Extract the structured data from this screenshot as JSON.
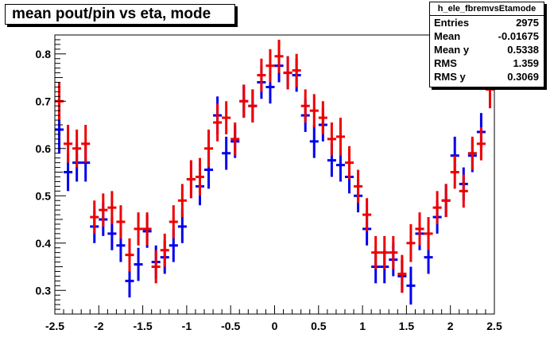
{
  "title": "mean pout/pin vs eta, mode",
  "stats": {
    "name": "h_ele_fbremvsEtamode",
    "rows": [
      {
        "label": "Entries",
        "value": "2975"
      },
      {
        "label": "Mean",
        "value": "-0.01675"
      },
      {
        "label": "Mean y",
        "value": "0.5338"
      },
      {
        "label": "RMS",
        "value": "1.359"
      },
      {
        "label": "RMS y",
        "value": "0.3069"
      }
    ]
  },
  "colors": {
    "blue_series": "#0000ee",
    "red_series": "#ee0000"
  },
  "chart_data": {
    "type": "scatter",
    "title": "mean pout/pin vs eta, mode",
    "xlabel": "",
    "ylabel": "",
    "xlim": [
      -2.5,
      2.5
    ],
    "ylim": [
      0.25,
      0.84
    ],
    "xticks": [
      "-2.5",
      "-2",
      "-1.5",
      "-1",
      "-0.5",
      "0",
      "0.5",
      "1",
      "1.5",
      "2",
      "2.5"
    ],
    "yticks": [
      "0.3",
      "0.4",
      "0.5",
      "0.6",
      "0.7",
      "0.8"
    ],
    "grid": false,
    "legend": "none",
    "series": [
      {
        "color": "#0000ee",
        "points": [
          {
            "x": -2.45,
            "y": 0.64,
            "err": 0.05
          },
          {
            "x": -2.35,
            "y": 0.55,
            "err": 0.04
          },
          {
            "x": -2.25,
            "y": 0.57,
            "err": 0.04
          },
          {
            "x": -2.15,
            "y": 0.57,
            "err": 0.04
          },
          {
            "x": -2.05,
            "y": 0.435,
            "err": 0.035
          },
          {
            "x": -1.95,
            "y": 0.45,
            "err": 0.035
          },
          {
            "x": -1.85,
            "y": 0.42,
            "err": 0.035
          },
          {
            "x": -1.75,
            "y": 0.395,
            "err": 0.035
          },
          {
            "x": -1.65,
            "y": 0.32,
            "err": 0.035
          },
          {
            "x": -1.55,
            "y": 0.355,
            "err": 0.035
          },
          {
            "x": -1.45,
            "y": 0.425,
            "err": 0.035
          },
          {
            "x": -1.35,
            "y": 0.36,
            "err": 0.035
          },
          {
            "x": -1.25,
            "y": 0.37,
            "err": 0.035
          },
          {
            "x": -1.15,
            "y": 0.395,
            "err": 0.035
          },
          {
            "x": -1.05,
            "y": 0.435,
            "err": 0.035
          },
          {
            "x": -0.95,
            "y": 0.535,
            "err": 0.04
          },
          {
            "x": -0.85,
            "y": 0.52,
            "err": 0.04
          },
          {
            "x": -0.75,
            "y": 0.555,
            "err": 0.04
          },
          {
            "x": -0.65,
            "y": 0.67,
            "err": 0.04
          },
          {
            "x": -0.55,
            "y": 0.59,
            "err": 0.035
          },
          {
            "x": -0.45,
            "y": 0.615,
            "err": 0.035
          },
          {
            "x": -0.35,
            "y": 0.7,
            "err": 0.035
          },
          {
            "x": -0.25,
            "y": 0.69,
            "err": 0.035
          },
          {
            "x": -0.15,
            "y": 0.74,
            "err": 0.035
          },
          {
            "x": -0.05,
            "y": 0.73,
            "err": 0.035
          },
          {
            "x": 0.05,
            "y": 0.775,
            "err": 0.035
          },
          {
            "x": 0.15,
            "y": 0.76,
            "err": 0.035
          },
          {
            "x": 0.25,
            "y": 0.755,
            "err": 0.035
          },
          {
            "x": 0.35,
            "y": 0.67,
            "err": 0.035
          },
          {
            "x": 0.45,
            "y": 0.615,
            "err": 0.035
          },
          {
            "x": 0.55,
            "y": 0.65,
            "err": 0.035
          },
          {
            "x": 0.65,
            "y": 0.575,
            "err": 0.035
          },
          {
            "x": 0.75,
            "y": 0.565,
            "err": 0.035
          },
          {
            "x": 0.85,
            "y": 0.54,
            "err": 0.035
          },
          {
            "x": 0.95,
            "y": 0.5,
            "err": 0.035
          },
          {
            "x": 1.05,
            "y": 0.43,
            "err": 0.035
          },
          {
            "x": 1.15,
            "y": 0.35,
            "err": 0.035
          },
          {
            "x": 1.25,
            "y": 0.35,
            "err": 0.035
          },
          {
            "x": 1.35,
            "y": 0.365,
            "err": 0.035
          },
          {
            "x": 1.45,
            "y": 0.33,
            "err": 0.035
          },
          {
            "x": 1.55,
            "y": 0.31,
            "err": 0.04
          },
          {
            "x": 1.65,
            "y": 0.42,
            "err": 0.035
          },
          {
            "x": 1.75,
            "y": 0.37,
            "err": 0.035
          },
          {
            "x": 1.85,
            "y": 0.455,
            "err": 0.035
          },
          {
            "x": 1.95,
            "y": 0.49,
            "err": 0.035
          },
          {
            "x": 2.05,
            "y": 0.585,
            "err": 0.04
          },
          {
            "x": 2.15,
            "y": 0.525,
            "err": 0.035
          },
          {
            "x": 2.25,
            "y": 0.585,
            "err": 0.035
          },
          {
            "x": 2.35,
            "y": 0.635,
            "err": 0.04
          }
        ]
      },
      {
        "color": "#ee0000",
        "points": [
          {
            "x": -2.45,
            "y": 0.7,
            "err": 0.04
          },
          {
            "x": -2.35,
            "y": 0.61,
            "err": 0.04
          },
          {
            "x": -2.25,
            "y": 0.6,
            "err": 0.04
          },
          {
            "x": -2.15,
            "y": 0.61,
            "err": 0.04
          },
          {
            "x": -2.05,
            "y": 0.455,
            "err": 0.035
          },
          {
            "x": -1.95,
            "y": 0.47,
            "err": 0.035
          },
          {
            "x": -1.85,
            "y": 0.475,
            "err": 0.035
          },
          {
            "x": -1.75,
            "y": 0.445,
            "err": 0.035
          },
          {
            "x": -1.65,
            "y": 0.375,
            "err": 0.035
          },
          {
            "x": -1.55,
            "y": 0.43,
            "err": 0.035
          },
          {
            "x": -1.45,
            "y": 0.43,
            "err": 0.035
          },
          {
            "x": -1.35,
            "y": 0.35,
            "err": 0.035
          },
          {
            "x": -1.25,
            "y": 0.385,
            "err": 0.035
          },
          {
            "x": -1.15,
            "y": 0.445,
            "err": 0.035
          },
          {
            "x": -1.05,
            "y": 0.49,
            "err": 0.035
          },
          {
            "x": -0.95,
            "y": 0.535,
            "err": 0.04
          },
          {
            "x": -0.85,
            "y": 0.54,
            "err": 0.04
          },
          {
            "x": -0.75,
            "y": 0.6,
            "err": 0.04
          },
          {
            "x": -0.65,
            "y": 0.655,
            "err": 0.04
          },
          {
            "x": -0.55,
            "y": 0.665,
            "err": 0.035
          },
          {
            "x": -0.45,
            "y": 0.62,
            "err": 0.035
          },
          {
            "x": -0.35,
            "y": 0.7,
            "err": 0.035
          },
          {
            "x": -0.25,
            "y": 0.69,
            "err": 0.035
          },
          {
            "x": -0.15,
            "y": 0.755,
            "err": 0.035
          },
          {
            "x": -0.05,
            "y": 0.775,
            "err": 0.035
          },
          {
            "x": 0.05,
            "y": 0.795,
            "err": 0.035
          },
          {
            "x": 0.15,
            "y": 0.76,
            "err": 0.035
          },
          {
            "x": 0.25,
            "y": 0.765,
            "err": 0.035
          },
          {
            "x": 0.35,
            "y": 0.69,
            "err": 0.035
          },
          {
            "x": 0.45,
            "y": 0.68,
            "err": 0.035
          },
          {
            "x": 0.55,
            "y": 0.665,
            "err": 0.035
          },
          {
            "x": 0.65,
            "y": 0.62,
            "err": 0.035
          },
          {
            "x": 0.75,
            "y": 0.625,
            "err": 0.04
          },
          {
            "x": 0.85,
            "y": 0.57,
            "err": 0.035
          },
          {
            "x": 0.95,
            "y": 0.52,
            "err": 0.035
          },
          {
            "x": 1.05,
            "y": 0.46,
            "err": 0.035
          },
          {
            "x": 1.15,
            "y": 0.38,
            "err": 0.035
          },
          {
            "x": 1.25,
            "y": 0.38,
            "err": 0.035
          },
          {
            "x": 1.35,
            "y": 0.38,
            "err": 0.035
          },
          {
            "x": 1.45,
            "y": 0.335,
            "err": 0.04
          },
          {
            "x": 1.55,
            "y": 0.4,
            "err": 0.04
          },
          {
            "x": 1.65,
            "y": 0.43,
            "err": 0.035
          },
          {
            "x": 1.75,
            "y": 0.42,
            "err": 0.035
          },
          {
            "x": 1.85,
            "y": 0.475,
            "err": 0.035
          },
          {
            "x": 1.95,
            "y": 0.49,
            "err": 0.035
          },
          {
            "x": 2.05,
            "y": 0.55,
            "err": 0.035
          },
          {
            "x": 2.15,
            "y": 0.51,
            "err": 0.035
          },
          {
            "x": 2.25,
            "y": 0.59,
            "err": 0.035
          },
          {
            "x": 2.35,
            "y": 0.61,
            "err": 0.035
          },
          {
            "x": 2.45,
            "y": 0.725,
            "err": 0.04
          }
        ]
      }
    ]
  }
}
